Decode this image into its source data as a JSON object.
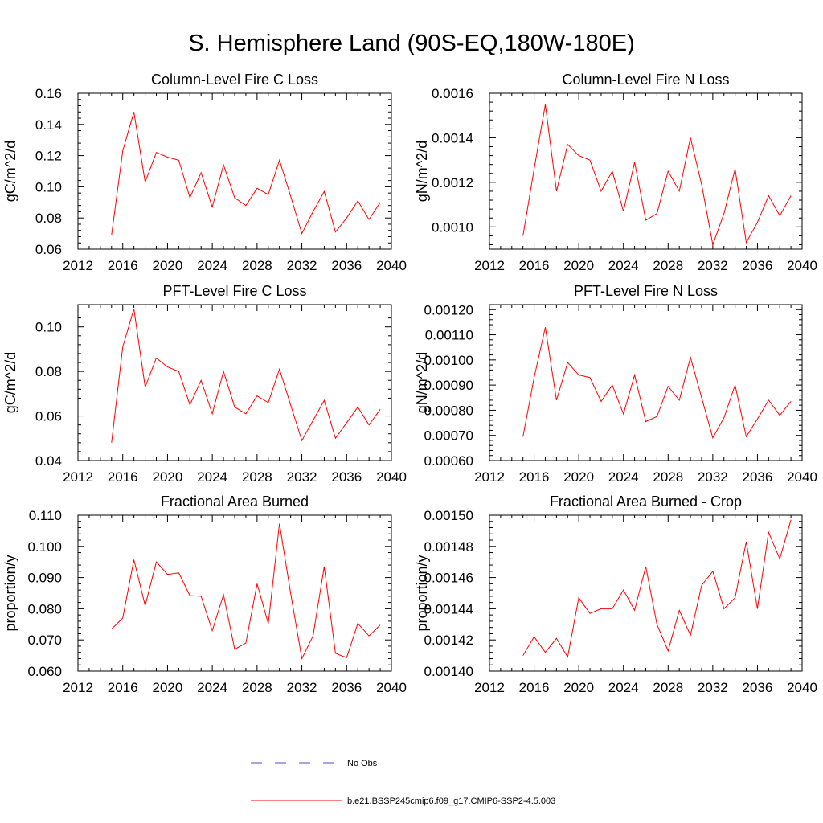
{
  "title": "S. Hemisphere Land (90S-EQ,180W-180E)",
  "colors": {
    "model_line": "#ff0000",
    "obs_line": "#4c4ccc",
    "axis": "#000000"
  },
  "legend": {
    "obs_label": "No Obs",
    "model_label": "b.e21.BSSP245cmip6.f09_g17.CMIP6-SSP2-4.5.003"
  },
  "chart_data": [
    {
      "type": "line",
      "title": "Column-Level Fire C Loss",
      "ylabel": "gC/m^2/d",
      "xlim": [
        2012,
        2040
      ],
      "ylim": [
        0.06,
        0.16
      ],
      "xticks": [
        "2012",
        "2016",
        "2020",
        "2024",
        "2028",
        "2032",
        "2036",
        "2040"
      ],
      "yticks": [
        "0.06",
        "0.08",
        "0.10",
        "0.12",
        "0.14",
        "0.16"
      ],
      "x": [
        2015,
        2016,
        2017,
        2018,
        2019,
        2020,
        2021,
        2022,
        2023,
        2024,
        2025,
        2026,
        2027,
        2028,
        2029,
        2030,
        2031,
        2032,
        2033,
        2034,
        2035,
        2036,
        2037,
        2038,
        2039
      ],
      "series": [
        {
          "values": [
            0.069,
            0.123,
            0.148,
            0.103,
            0.122,
            0.119,
            0.117,
            0.093,
            0.109,
            0.087,
            0.114,
            0.093,
            0.088,
            0.099,
            0.095,
            0.117,
            0.094,
            0.07,
            0.084,
            0.097,
            0.071,
            0.08,
            0.091,
            0.079,
            0.09
          ]
        }
      ]
    },
    {
      "type": "line",
      "title": "Column-Level Fire N Loss",
      "ylabel": "gN/m^2/d",
      "xlim": [
        2012,
        2040
      ],
      "ylim": [
        0.0009,
        0.0016
      ],
      "xticks": [
        "2012",
        "2016",
        "2020",
        "2024",
        "2028",
        "2032",
        "2036",
        "2040"
      ],
      "yticks": [
        "0.0010",
        "0.0012",
        "0.0014",
        "0.0016"
      ],
      "ytick_values": [
        0.001,
        0.0012,
        0.0014,
        0.0016
      ],
      "x": [
        2015,
        2016,
        2017,
        2018,
        2019,
        2020,
        2021,
        2022,
        2023,
        2024,
        2025,
        2026,
        2027,
        2028,
        2029,
        2030,
        2031,
        2032,
        2033,
        2034,
        2035,
        2036,
        2037,
        2038,
        2039
      ],
      "series": [
        {
          "values": [
            0.00096,
            0.00126,
            0.00155,
            0.00116,
            0.00137,
            0.00132,
            0.0013,
            0.00116,
            0.00125,
            0.00107,
            0.00129,
            0.00103,
            0.00106,
            0.00125,
            0.00116,
            0.0014,
            0.00119,
            0.00092,
            0.00106,
            0.00126,
            0.00093,
            0.00102,
            0.00114,
            0.00105,
            0.00114
          ]
        }
      ]
    },
    {
      "type": "line",
      "title": "PFT-Level Fire C Loss",
      "ylabel": "gC/m^2/d",
      "xlim": [
        2012,
        2040
      ],
      "ylim": [
        0.04,
        0.11
      ],
      "xticks": [
        "2012",
        "2016",
        "2020",
        "2024",
        "2028",
        "2032",
        "2036",
        "2040"
      ],
      "yticks": [
        "0.04",
        "0.06",
        "0.08",
        "0.10"
      ],
      "ytick_values": [
        0.04,
        0.06,
        0.08,
        0.1
      ],
      "x": [
        2015,
        2016,
        2017,
        2018,
        2019,
        2020,
        2021,
        2022,
        2023,
        2024,
        2025,
        2026,
        2027,
        2028,
        2029,
        2030,
        2031,
        2032,
        2033,
        2034,
        2035,
        2036,
        2037,
        2038,
        2039
      ],
      "series": [
        {
          "values": [
            0.048,
            0.091,
            0.108,
            0.073,
            0.086,
            0.082,
            0.08,
            0.065,
            0.076,
            0.061,
            0.08,
            0.064,
            0.061,
            0.069,
            0.066,
            0.081,
            0.065,
            0.049,
            0.058,
            0.067,
            0.05,
            0.057,
            0.064,
            0.056,
            0.063
          ]
        }
      ]
    },
    {
      "type": "line",
      "title": "PFT-Level Fire N Loss",
      "ylabel": "gN/m^2/d",
      "xlim": [
        2012,
        2040
      ],
      "ylim": [
        0.0006,
        0.00122
      ],
      "xticks": [
        "2012",
        "2016",
        "2020",
        "2024",
        "2028",
        "2032",
        "2036",
        "2040"
      ],
      "yticks": [
        "0.00060",
        "0.00070",
        "0.00080",
        "0.00090",
        "0.00100",
        "0.00110",
        "0.00120"
      ],
      "ytick_values": [
        0.0006,
        0.0007,
        0.0008,
        0.0009,
        0.001,
        0.0011,
        0.0012
      ],
      "x": [
        2015,
        2016,
        2017,
        2018,
        2019,
        2020,
        2021,
        2022,
        2023,
        2024,
        2025,
        2026,
        2027,
        2028,
        2029,
        2030,
        2031,
        2032,
        2033,
        2034,
        2035,
        2036,
        2037,
        2038,
        2039
      ],
      "series": [
        {
          "values": [
            0.000695,
            0.00093,
            0.00113,
            0.00084,
            0.00099,
            0.00094,
            0.00093,
            0.000835,
            0.0009,
            0.000785,
            0.00094,
            0.000755,
            0.000775,
            0.000895,
            0.00084,
            0.00101,
            0.00085,
            0.00069,
            0.00077,
            0.0009,
            0.000695,
            0.000765,
            0.00084,
            0.00078,
            0.000835
          ]
        }
      ]
    },
    {
      "type": "line",
      "title": "Fractional Area Burned",
      "ylabel": "proportion/y",
      "xlim": [
        2012,
        2040
      ],
      "ylim": [
        0.06,
        0.11
      ],
      "xticks": [
        "2012",
        "2016",
        "2020",
        "2024",
        "2028",
        "2032",
        "2036",
        "2040"
      ],
      "yticks": [
        "0.060",
        "0.070",
        "0.080",
        "0.090",
        "0.100",
        "0.110"
      ],
      "ytick_values": [
        0.06,
        0.07,
        0.08,
        0.09,
        0.1,
        0.11
      ],
      "x": [
        2015,
        2016,
        2017,
        2018,
        2019,
        2020,
        2021,
        2022,
        2023,
        2024,
        2025,
        2026,
        2027,
        2028,
        2029,
        2030,
        2031,
        2032,
        2033,
        2034,
        2035,
        2036,
        2037,
        2038,
        2039
      ],
      "series": [
        {
          "values": [
            0.0735,
            0.077,
            0.0957,
            0.081,
            0.095,
            0.091,
            0.0915,
            0.0842,
            0.084,
            0.073,
            0.0845,
            0.067,
            0.069,
            0.088,
            0.0752,
            0.1073,
            0.085,
            0.064,
            0.0713,
            0.0935,
            0.0657,
            0.0643,
            0.0753,
            0.0713,
            0.0748
          ]
        }
      ]
    },
    {
      "type": "line",
      "title": "Fractional Area Burned - Crop",
      "ylabel": "proportion/y",
      "xlim": [
        2012,
        2040
      ],
      "ylim": [
        0.0014,
        0.0015
      ],
      "xticks": [
        "2012",
        "2016",
        "2020",
        "2024",
        "2028",
        "2032",
        "2036",
        "2040"
      ],
      "yticks": [
        "0.00140",
        "0.00142",
        "0.00144",
        "0.00146",
        "0.00148",
        "0.00150"
      ],
      "ytick_values": [
        0.0014,
        0.00142,
        0.00144,
        0.00146,
        0.00148,
        0.0015
      ],
      "x": [
        2015,
        2016,
        2017,
        2018,
        2019,
        2020,
        2021,
        2022,
        2023,
        2024,
        2025,
        2026,
        2027,
        2028,
        2029,
        2030,
        2031,
        2032,
        2033,
        2034,
        2035,
        2036,
        2037,
        2038,
        2039
      ],
      "series": [
        {
          "values": [
            0.00141,
            0.001422,
            0.001412,
            0.001421,
            0.001409,
            0.001447,
            0.001437,
            0.00144,
            0.00144,
            0.001452,
            0.001439,
            0.001467,
            0.00143,
            0.001413,
            0.001439,
            0.001423,
            0.001455,
            0.001464,
            0.00144,
            0.001447,
            0.001483,
            0.00144,
            0.001489,
            0.001472,
            0.001497
          ]
        }
      ]
    }
  ]
}
